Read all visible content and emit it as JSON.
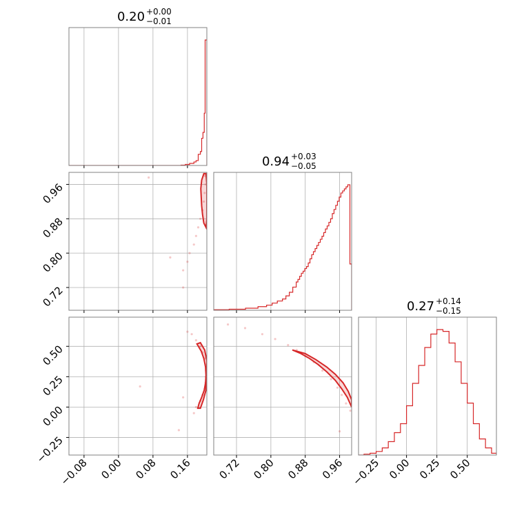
{
  "colors": {
    "line": "#d62728",
    "grid": "#b0b0b0",
    "frame": "#808080"
  },
  "chart_data": {
    "type": "corner",
    "parameters": [
      {
        "median": "0.20",
        "plus": "+0.00",
        "minus": "−0.01",
        "range": [
          -0.115,
          0.205
        ],
        "ticks": [
          -0.08,
          0.0,
          0.08,
          0.16
        ],
        "tick_labels": [
          "−0.08",
          "0.00",
          "0.08",
          "0.16"
        ]
      },
      {
        "median": "0.94",
        "plus": "+0.03",
        "minus": "−0.05",
        "range": [
          0.667,
          0.988
        ],
        "ticks": [
          0.72,
          0.8,
          0.88,
          0.96
        ],
        "tick_labels": [
          "0.72",
          "0.80",
          "0.88",
          "0.96"
        ]
      },
      {
        "median": "0.27",
        "plus": "+0.14",
        "minus": "−0.15",
        "range": [
          -0.395,
          0.74
        ],
        "ticks": [
          -0.25,
          0.0,
          0.25,
          0.5
        ],
        "tick_labels": [
          "−0.25",
          "0.00",
          "0.25",
          "0.50"
        ]
      }
    ],
    "histograms": [
      {
        "param": 0,
        "edges": [
          -0.115,
          0.145,
          0.155,
          0.165,
          0.175,
          0.18,
          0.185,
          0.19,
          0.193,
          0.196,
          0.199,
          0.201,
          0.203,
          0.205
        ],
        "counts": [
          0,
          1,
          3,
          6,
          10,
          14,
          32,
          40,
          78,
          95,
          150,
          360,
          360
        ]
      },
      {
        "param": 1,
        "edges": [
          0.667,
          0.703,
          0.741,
          0.77,
          0.79,
          0.803,
          0.815,
          0.827,
          0.835,
          0.843,
          0.851,
          0.859,
          0.863,
          0.867,
          0.871,
          0.875,
          0.879,
          0.883,
          0.887,
          0.891,
          0.895,
          0.899,
          0.903,
          0.907,
          0.911,
          0.915,
          0.919,
          0.923,
          0.927,
          0.931,
          0.935,
          0.939,
          0.943,
          0.947,
          0.951,
          0.955,
          0.959,
          0.963,
          0.967,
          0.971,
          0.975,
          0.979,
          0.984,
          0.988
        ],
        "counts": [
          1,
          2,
          4,
          7,
          10,
          14,
          18,
          22,
          28,
          35,
          45,
          55,
          60,
          66,
          72,
          76,
          81,
          85,
          92,
          100,
          108,
          114,
          120,
          126,
          132,
          138,
          144,
          151,
          158,
          164,
          171,
          178,
          188,
          196,
          204,
          212,
          220,
          228,
          232,
          236,
          240,
          244,
          90
        ]
      },
      {
        "param": 2,
        "edges": [
          -0.395,
          -0.35,
          -0.3,
          -0.25,
          -0.2,
          -0.15,
          -0.1,
          -0.05,
          0.0,
          0.05,
          0.1,
          0.15,
          0.2,
          0.25,
          0.3,
          0.35,
          0.4,
          0.45,
          0.5,
          0.55,
          0.6,
          0.65,
          0.7,
          0.74
        ],
        "counts": [
          0,
          1,
          2,
          4,
          8,
          15,
          25,
          35,
          55,
          80,
          100,
          120,
          135,
          140,
          138,
          125,
          104,
          80,
          58,
          35,
          18,
          8,
          2
        ]
      }
    ],
    "panels": [
      {
        "kind": "hist",
        "row": 0,
        "col": 0,
        "param": 0
      },
      {
        "kind": "scatter",
        "row": 1,
        "col": 0,
        "x_param": 0,
        "y_param": 1
      },
      {
        "kind": "hist",
        "row": 1,
        "col": 1,
        "param": 1
      },
      {
        "kind": "scatter",
        "row": 2,
        "col": 0,
        "x_param": 0,
        "y_param": 2
      },
      {
        "kind": "scatter",
        "row": 2,
        "col": 1,
        "x_param": 1,
        "y_param": 2
      },
      {
        "kind": "hist",
        "row": 2,
        "col": 2,
        "param": 2
      }
    ],
    "scatter_points": {
      "x0_y1": [
        [
          0.15,
          0.72
        ],
        [
          0.12,
          0.79
        ],
        [
          0.165,
          0.8
        ],
        [
          0.175,
          0.82
        ],
        [
          0.18,
          0.84
        ],
        [
          0.185,
          0.86
        ],
        [
          0.19,
          0.88
        ],
        [
          0.195,
          0.9
        ],
        [
          0.198,
          0.92
        ],
        [
          0.2,
          0.94
        ],
        [
          0.202,
          0.96
        ],
        [
          0.2,
          0.98
        ],
        [
          0.07,
          0.976
        ],
        [
          0.15,
          0.76
        ],
        [
          0.16,
          0.78
        ]
      ],
      "x0_y2": [
        [
          0.05,
          0.17
        ],
        [
          0.16,
          0.62
        ],
        [
          0.17,
          0.6
        ],
        [
          0.18,
          0.55
        ],
        [
          0.19,
          0.5
        ],
        [
          0.195,
          0.45
        ],
        [
          0.2,
          0.4
        ],
        [
          0.202,
          0.35
        ],
        [
          0.203,
          0.3
        ],
        [
          0.203,
          0.25
        ],
        [
          0.202,
          0.2
        ],
        [
          0.2,
          0.15
        ],
        [
          0.195,
          0.1
        ],
        [
          0.19,
          0.05
        ],
        [
          0.18,
          0.0
        ],
        [
          0.175,
          -0.05
        ],
        [
          0.14,
          -0.19
        ],
        [
          0.15,
          0.08
        ]
      ],
      "x1_y2": [
        [
          0.7,
          0.68
        ],
        [
          0.74,
          0.65
        ],
        [
          0.78,
          0.6
        ],
        [
          0.81,
          0.56
        ],
        [
          0.84,
          0.51
        ],
        [
          0.86,
          0.47
        ],
        [
          0.88,
          0.42
        ],
        [
          0.9,
          0.37
        ],
        [
          0.92,
          0.3
        ],
        [
          0.94,
          0.23
        ],
        [
          0.955,
          0.16
        ],
        [
          0.965,
          0.1
        ],
        [
          0.975,
          0.03
        ],
        [
          0.985,
          -0.03
        ],
        [
          0.96,
          -0.2
        ]
      ]
    },
    "contours": {
      "x0_y1": [
        [
          0.198,
          0.985
        ],
        [
          0.193,
          0.97
        ],
        [
          0.191,
          0.95
        ],
        [
          0.192,
          0.93
        ],
        [
          0.193,
          0.91
        ],
        [
          0.195,
          0.89
        ],
        [
          0.198,
          0.87
        ],
        [
          0.203,
          0.86
        ],
        [
          0.205,
          0.88
        ],
        [
          0.205,
          0.92
        ],
        [
          0.205,
          0.96
        ],
        [
          0.203,
          0.985
        ],
        [
          0.198,
          0.985
        ]
      ],
      "x0_y2": [
        [
          0.182,
          0.52
        ],
        [
          0.192,
          0.46
        ],
        [
          0.198,
          0.4
        ],
        [
          0.202,
          0.33
        ],
        [
          0.203,
          0.26
        ],
        [
          0.202,
          0.2
        ],
        [
          0.199,
          0.14
        ],
        [
          0.193,
          0.08
        ],
        [
          0.187,
          0.03
        ],
        [
          0.184,
          -0.01
        ],
        [
          0.19,
          -0.01
        ],
        [
          0.197,
          0.06
        ],
        [
          0.203,
          0.14
        ],
        [
          0.205,
          0.26
        ],
        [
          0.205,
          0.38
        ],
        [
          0.2,
          0.47
        ],
        [
          0.19,
          0.53
        ],
        [
          0.182,
          0.52
        ]
      ],
      "x1_y2": [
        [
          0.85,
          0.47
        ],
        [
          0.87,
          0.44
        ],
        [
          0.89,
          0.4
        ],
        [
          0.91,
          0.35
        ],
        [
          0.93,
          0.29
        ],
        [
          0.95,
          0.22
        ],
        [
          0.965,
          0.15
        ],
        [
          0.978,
          0.08
        ],
        [
          0.988,
          0.0
        ],
        [
          0.988,
          0.06
        ],
        [
          0.98,
          0.13
        ],
        [
          0.968,
          0.2
        ],
        [
          0.95,
          0.27
        ],
        [
          0.93,
          0.33
        ],
        [
          0.905,
          0.39
        ],
        [
          0.88,
          0.44
        ],
        [
          0.85,
          0.47
        ]
      ]
    },
    "grid": true,
    "legend": "none"
  }
}
